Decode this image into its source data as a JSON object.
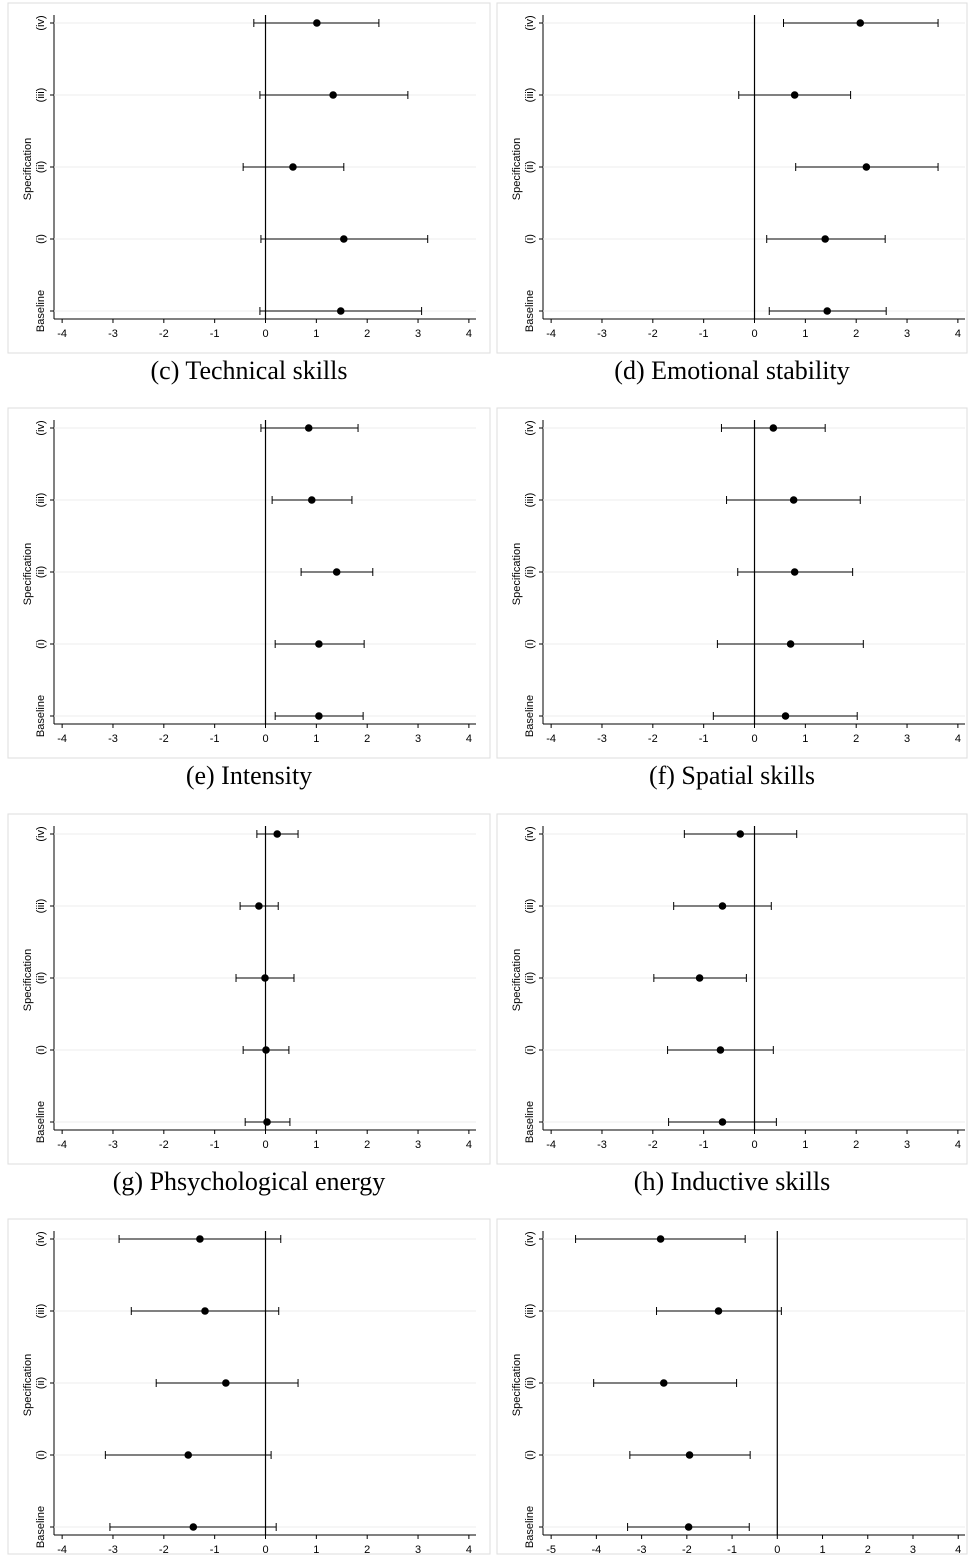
{
  "chart_data": [
    {
      "type": "errorbar",
      "title": "(c) Technical skills",
      "ylabel": "Specification",
      "categories": [
        "(iv)",
        "(iii)",
        "(ii)",
        "(i)",
        "Baseline"
      ],
      "values": [
        1.01,
        1.33,
        0.54,
        1.54,
        1.48
      ],
      "lower": [
        -0.23,
        -0.11,
        -0.44,
        -0.09,
        -0.11
      ],
      "upper": [
        2.23,
        2.8,
        1.54,
        3.19,
        3.07
      ],
      "xlim": [
        -4.16,
        4.14
      ],
      "xticks": [
        -4,
        -3,
        -2,
        -1,
        0,
        1,
        2,
        3,
        4
      ],
      "refline": 0,
      "color": "#000000",
      "grid": true
    },
    {
      "type": "errorbar",
      "title": "(d) Emotional stability",
      "ylabel": "Specification",
      "categories": [
        "(iv)",
        "(iii)",
        "(ii)",
        "(i)",
        "Baseline"
      ],
      "values": [
        2.08,
        0.79,
        2.2,
        1.39,
        1.43
      ],
      "lower": [
        0.57,
        -0.31,
        0.81,
        0.24,
        0.29
      ],
      "upper": [
        3.61,
        1.89,
        3.61,
        2.57,
        2.59
      ],
      "xlim": [
        -4.16,
        4.14
      ],
      "xticks": [
        -4,
        -3,
        -2,
        -1,
        0,
        1,
        2,
        3,
        4
      ],
      "refline": 0,
      "color": "#000000",
      "grid": true
    },
    {
      "type": "errorbar",
      "title": "(e) Intensity",
      "ylabel": "Specification",
      "categories": [
        "(iv)",
        "(iii)",
        "(ii)",
        "(i)",
        "Baseline"
      ],
      "values": [
        0.85,
        0.91,
        1.4,
        1.05,
        1.05
      ],
      "lower": [
        -0.09,
        0.13,
        0.7,
        0.19,
        0.19
      ],
      "upper": [
        1.82,
        1.7,
        2.11,
        1.94,
        1.92
      ],
      "xlim": [
        -4.16,
        4.14
      ],
      "xticks": [
        -4,
        -3,
        -2,
        -1,
        0,
        1,
        2,
        3,
        4
      ],
      "refline": 0,
      "color": "#000000",
      "grid": true
    },
    {
      "type": "errorbar",
      "title": "(f) Spatial skills",
      "ylabel": "Specification",
      "categories": [
        "(iv)",
        "(iii)",
        "(ii)",
        "(i)",
        "Baseline"
      ],
      "values": [
        0.37,
        0.77,
        0.79,
        0.71,
        0.61
      ],
      "lower": [
        -0.65,
        -0.55,
        -0.33,
        -0.73,
        -0.81
      ],
      "upper": [
        1.39,
        2.08,
        1.93,
        2.14,
        2.02
      ],
      "xlim": [
        -4.16,
        4.14
      ],
      "xticks": [
        -4,
        -3,
        -2,
        -1,
        0,
        1,
        2,
        3,
        4
      ],
      "refline": 0,
      "color": "#000000",
      "grid": true
    },
    {
      "type": "errorbar",
      "title": "(g) Phsychological energy",
      "ylabel": "Specification",
      "categories": [
        "(iv)",
        "(iii)",
        "(ii)",
        "(i)",
        "Baseline"
      ],
      "values": [
        0.23,
        -0.13,
        -0.01,
        0.01,
        0.03
      ],
      "lower": [
        -0.17,
        -0.5,
        -0.58,
        -0.44,
        -0.4
      ],
      "upper": [
        0.64,
        0.25,
        0.56,
        0.46,
        0.48
      ],
      "xlim": [
        -4.16,
        4.14
      ],
      "xticks": [
        -4,
        -3,
        -2,
        -1,
        0,
        1,
        2,
        3,
        4
      ],
      "refline": 0,
      "color": "#000000",
      "grid": true
    },
    {
      "type": "errorbar",
      "title": "(h) Inductive skills",
      "ylabel": "Specification",
      "categories": [
        "(iv)",
        "(iii)",
        "(ii)",
        "(i)",
        "Baseline"
      ],
      "values": [
        -0.28,
        -0.63,
        -1.08,
        -0.67,
        -0.63
      ],
      "lower": [
        -1.38,
        -1.59,
        -1.98,
        -1.71,
        -1.69
      ],
      "upper": [
        0.83,
        0.33,
        -0.16,
        0.37,
        0.43
      ],
      "xlim": [
        -4.16,
        4.14
      ],
      "xticks": [
        -4,
        -3,
        -2,
        -1,
        0,
        1,
        2,
        3,
        4
      ],
      "refline": 0,
      "color": "#000000",
      "grid": true
    },
    {
      "type": "errorbar",
      "ylabel": "Specification",
      "categories": [
        "(iv)",
        "(iii)",
        "(ii)",
        "(i)",
        "Baseline"
      ],
      "values": [
        -1.29,
        -1.19,
        -0.78,
        -1.52,
        -1.42
      ],
      "lower": [
        -2.88,
        -2.64,
        -2.15,
        -3.15,
        -3.06
      ],
      "upper": [
        0.3,
        0.26,
        0.64,
        0.11,
        0.21
      ],
      "xlim": [
        -4.16,
        4.14
      ],
      "xticks": [
        -4,
        -3,
        -2,
        -1,
        0,
        1,
        2,
        3,
        4
      ],
      "refline": 0,
      "color": "#000000",
      "grid": true
    },
    {
      "type": "errorbar",
      "ylabel": "Specification",
      "categories": [
        "(iv)",
        "(iii)",
        "(ii)",
        "(i)",
        "Baseline"
      ],
      "values": [
        -2.58,
        -1.3,
        -2.51,
        -1.94,
        -1.96
      ],
      "lower": [
        -4.46,
        -2.67,
        -4.06,
        -3.26,
        -3.31
      ],
      "upper": [
        -0.71,
        0.09,
        -0.9,
        -0.6,
        -0.62
      ],
      "xlim": [
        -5.18,
        4.15
      ],
      "xticks": [
        -5,
        -4,
        -3,
        -2,
        -1,
        0,
        1,
        2,
        3,
        4
      ],
      "refline": 0,
      "color": "#000000",
      "grid": true
    }
  ]
}
